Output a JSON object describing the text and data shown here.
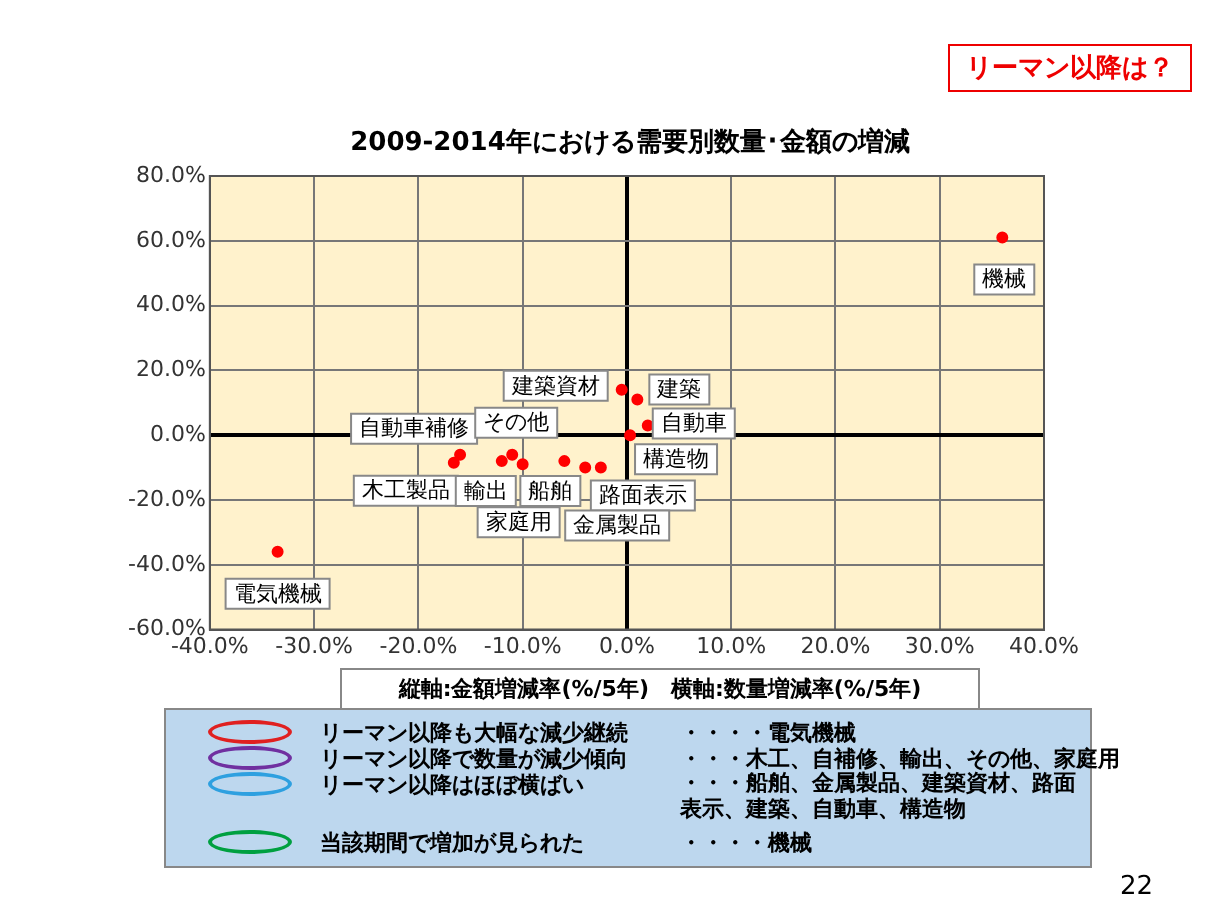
{
  "chart_data": {
    "type": "scatter",
    "title": "2009-2014年における需要別数量･金額の増減",
    "x": [
      36,
      -33.5,
      -0.5,
      1,
      2,
      0.3,
      -16,
      -16.6,
      -11,
      -12,
      -10,
      -6,
      -2.5,
      -4
    ],
    "values": [
      61,
      -36,
      14,
      11,
      3,
      0,
      -6,
      -8.5,
      -6,
      -8,
      -9,
      -8,
      -10,
      -10
    ],
    "color": "#ff0000",
    "marker": "circle",
    "grid": true,
    "legend": false,
    "xlim": [
      -40,
      40
    ],
    "xticks": [
      {
        "value": -40,
        "label": "-40.0%"
      },
      {
        "value": -30,
        "label": "-30.0%"
      },
      {
        "value": -20,
        "label": "-20.0%"
      },
      {
        "value": -10,
        "label": "-10.0%"
      },
      {
        "value": 0,
        "label": "0.0%"
      },
      {
        "value": 10,
        "label": "10.0%"
      },
      {
        "value": 20,
        "label": "20.0%"
      },
      {
        "value": 30,
        "label": "30.0%"
      },
      {
        "value": 40,
        "label": "40.0%"
      }
    ],
    "ylim": [
      -60,
      80
    ],
    "yticks": [
      {
        "value": -60,
        "label": "-60.0%"
      },
      {
        "value": -40,
        "label": "-40.0%"
      },
      {
        "value": -20,
        "label": "-20.0%"
      },
      {
        "value": 0,
        "label": "0.0%"
      },
      {
        "value": 20,
        "label": "20.0%"
      },
      {
        "value": 40,
        "label": "40.0%"
      },
      {
        "value": 60,
        "label": "60.0%"
      },
      {
        "value": 80,
        "label": "80.0%"
      }
    ],
    "annotations": [
      {
        "text": "機械",
        "x": 36,
        "y": 61
      },
      {
        "text": "電気機械",
        "x": -33.5,
        "y": -36
      },
      {
        "text": "建築資材",
        "x": -0.5,
        "y": 14
      },
      {
        "text": "建築",
        "x": 1,
        "y": 11
      },
      {
        "text": "自動車",
        "x": 2,
        "y": 3
      },
      {
        "text": "構造物",
        "x": 0.3,
        "y": 0
      },
      {
        "text": "自動車補修",
        "x": -16,
        "y": -6
      },
      {
        "text": "木工製品",
        "x": -16.6,
        "y": -8.5
      },
      {
        "text": "その他",
        "x": -11,
        "y": -6
      },
      {
        "text": "輸出",
        "x": -12,
        "y": -8
      },
      {
        "text": "家庭用",
        "x": -10,
        "y": -9
      },
      {
        "text": "船舶",
        "x": -6,
        "y": -8
      },
      {
        "text": "路面表示",
        "x": -2.5,
        "y": -10
      },
      {
        "text": "金属製品",
        "x": -4,
        "y": -10
      },
      "リーマン以降は？",
      "縦軸:金額増減率(%/5年)　横軸:数量増減率(%/5年)",
      "リーマン以降も大幅な減少継続",
      "・・・・電気機械",
      "リーマン以降で数量が減少傾向",
      "・・・木工、自補修、輸出、その他、家庭用",
      "リーマン以降はほぼ横ばい",
      "・・・船舶、金属製品、建築資材、路面表示、建築、自動車、構造物",
      "当該期間で増加が見られた",
      "・・・・機械",
      "22"
    ]
  }
}
